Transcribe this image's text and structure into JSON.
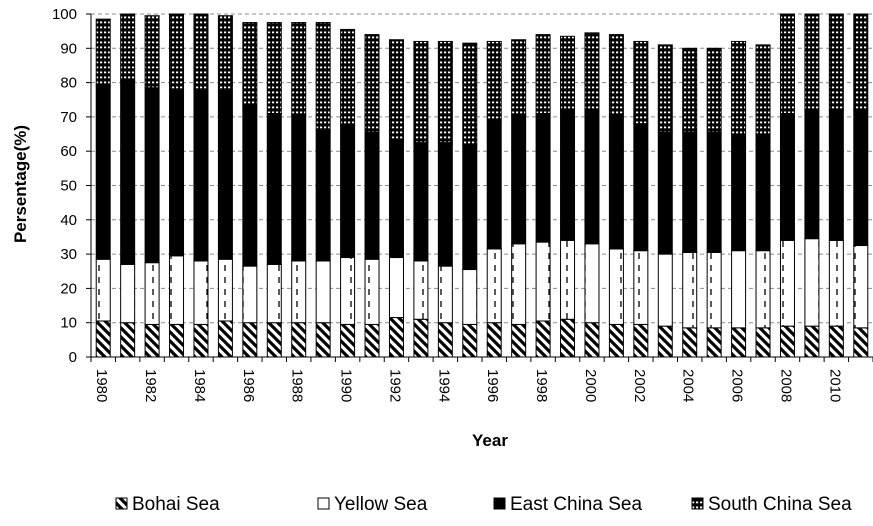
{
  "chart_data": {
    "type": "bar",
    "stacked": true,
    "title": "",
    "xlabel": "Year",
    "ylabel": "Persentage(%)",
    "ylim": [
      0,
      100
    ],
    "ytick_step": 10,
    "grid": "horizontal dashed",
    "legend_position": "bottom",
    "categories": [
      "1980",
      "1981",
      "1982",
      "1983",
      "1984",
      "1985",
      "1986",
      "1987",
      "1988",
      "1989",
      "1990",
      "1991",
      "1992",
      "1993",
      "1994",
      "1995",
      "1996",
      "1997",
      "1998",
      "1999",
      "2000",
      "2001",
      "2002",
      "2003",
      "2004",
      "2005",
      "2006",
      "2007",
      "2008",
      "2009",
      "2010",
      "2011"
    ],
    "tick_labels": [
      "1980",
      "1982",
      "1984",
      "1986",
      "1988",
      "1990",
      "1992",
      "1994",
      "1996",
      "1998",
      "2000",
      "2002",
      "2004",
      "2006",
      "2008",
      "2010"
    ],
    "series": [
      {
        "name": "Bohai Sea",
        "pattern": "diagonal",
        "values": [
          10.5,
          10.0,
          9.5,
          9.5,
          9.5,
          10.5,
          10.0,
          10.0,
          10.0,
          10.0,
          9.5,
          9.5,
          11.5,
          11.0,
          10.0,
          9.5,
          10.0,
          9.5,
          10.5,
          11.0,
          10.0,
          9.5,
          9.5,
          9.0,
          8.5,
          8.5,
          8.5,
          8.5,
          9.0,
          9.0,
          9.0,
          8.5
        ]
      },
      {
        "name": "Yellow Sea",
        "pattern": "white-dashed",
        "values": [
          18.0,
          17.0,
          18.0,
          20.0,
          18.5,
          18.0,
          16.5,
          17.0,
          18.0,
          18.0,
          19.5,
          19.0,
          17.5,
          17.0,
          16.5,
          16.0,
          21.5,
          23.5,
          23.0,
          23.0,
          23.0,
          22.0,
          21.5,
          21.0,
          22.0,
          22.0,
          22.5,
          22.5,
          25.0,
          25.5,
          25.0,
          24.0
        ]
      },
      {
        "name": "East China Sea",
        "pattern": "black",
        "values": [
          50.5,
          53.5,
          51.0,
          48.0,
          50.0,
          49.0,
          46.5,
          44.0,
          42.5,
          38.0,
          38.5,
          37.0,
          34.0,
          34.5,
          36.0,
          36.5,
          37.5,
          37.5,
          37.5,
          37.5,
          38.5,
          38.5,
          37.0,
          35.5,
          35.0,
          35.0,
          34.0,
          34.0,
          37.0,
          37.5,
          38.0,
          39.5
        ]
      },
      {
        "name": "South China Sea",
        "pattern": "horizontal-stripes",
        "values": [
          19.5,
          19.5,
          21.0,
          22.5,
          22.0,
          22.0,
          24.5,
          26.5,
          27.0,
          31.5,
          28.0,
          28.5,
          29.5,
          29.5,
          29.5,
          29.5,
          23.0,
          22.0,
          23.0,
          22.0,
          23.0,
          24.0,
          24.0,
          25.5,
          24.5,
          24.5,
          27.0,
          26.0,
          29.0,
          28.0,
          28.0,
          28.0
        ]
      }
    ]
  }
}
